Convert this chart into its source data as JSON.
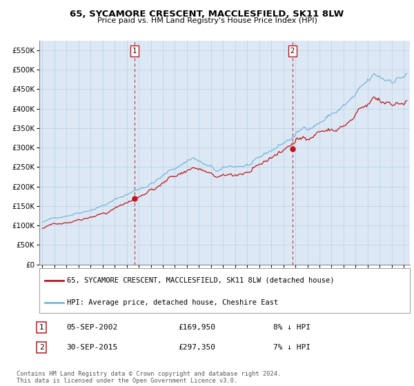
{
  "title": "65, SYCAMORE CRESCENT, MACCLESFIELD, SK11 8LW",
  "subtitle": "Price paid vs. HM Land Registry's House Price Index (HPI)",
  "ylim": [
    0,
    575000
  ],
  "xlim_start": 1994.75,
  "xlim_end": 2025.5,
  "sale1_x": 2002.67,
  "sale1_y": 169950,
  "sale1_label": "1",
  "sale1_date": "05-SEP-2002",
  "sale1_price": "£169,950",
  "sale1_hpi": "8% ↓ HPI",
  "sale2_x": 2015.75,
  "sale2_y": 297350,
  "sale2_label": "2",
  "sale2_date": "30-SEP-2015",
  "sale2_price": "£297,350",
  "sale2_hpi": "7% ↓ HPI",
  "legend_line1": "65, SYCAMORE CRESCENT, MACCLESFIELD, SK11 8LW (detached house)",
  "legend_line2": "HPI: Average price, detached house, Cheshire East",
  "footer": "Contains HM Land Registry data © Crown copyright and database right 2024.\nThis data is licensed under the Open Government Licence v3.0.",
  "hpi_color": "#7ab3d8",
  "sale_color": "#c0141c",
  "background_color": "#dce9f5",
  "plot_bg": "#ffffff",
  "grid_color": "#b8cfe0"
}
